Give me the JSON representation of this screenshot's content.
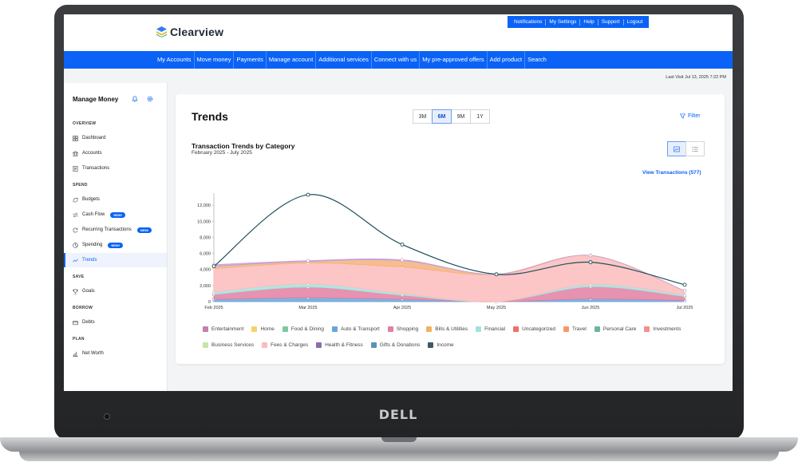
{
  "brand": {
    "name": "Clearview"
  },
  "utility_links": [
    "Notifications",
    "My Settings",
    "Help",
    "Support",
    "Logout"
  ],
  "nav_items": [
    "My Accounts",
    "Move money",
    "Payments",
    "Manage account",
    "Additional services",
    "Connect with us",
    "My pre-approved offers",
    "Add product",
    "Search"
  ],
  "last_visit": "Last Visit Jul 13, 2025 7:22 PM",
  "sidebar": {
    "title": "Manage Money",
    "sections": [
      {
        "label": "OVERVIEW",
        "items": [
          {
            "label": "Dashboard",
            "icon": "grid-icon"
          },
          {
            "label": "Accounts",
            "icon": "bank-icon"
          },
          {
            "label": "Transactions",
            "icon": "receipt-icon"
          }
        ]
      },
      {
        "label": "SPEND",
        "items": [
          {
            "label": "Budgets",
            "icon": "budget-icon"
          },
          {
            "label": "Cash Flow",
            "icon": "cashflow-icon",
            "badge": "NEW!"
          },
          {
            "label": "Recurring Transactions",
            "icon": "recurring-icon",
            "badge": "NEW!"
          },
          {
            "label": "Spending",
            "icon": "spending-icon",
            "badge": "NEW!"
          },
          {
            "label": "Trends",
            "icon": "trend-icon",
            "active": true
          }
        ]
      },
      {
        "label": "SAVE",
        "items": [
          {
            "label": "Goals",
            "icon": "trophy-icon"
          }
        ]
      },
      {
        "label": "BORROW",
        "items": [
          {
            "label": "Debts",
            "icon": "debt-icon"
          }
        ]
      },
      {
        "label": "PLAN",
        "items": [
          {
            "label": "Net Worth",
            "icon": "networth-icon"
          }
        ]
      }
    ]
  },
  "main": {
    "title": "Trends",
    "ranges": [
      "3M",
      "6M",
      "9M",
      "1Y"
    ],
    "active_range": "6M",
    "filter_label": "Filter",
    "view_transactions": "View Transactions (577)"
  },
  "chart_data": {
    "type": "area",
    "title": "Transaction Trends by Category",
    "subtitle": "February 2025 - July 2025",
    "categories": [
      "Feb 2025",
      "Mar 2025",
      "Apr 2025",
      "May 2025",
      "Jun 2025",
      "Jul 2025"
    ],
    "y_ticks": [
      "0",
      "2,000",
      "4,000",
      "6,000",
      "8,000",
      "10,000",
      "12,000"
    ],
    "ylim": [
      0,
      13500
    ],
    "stacked_series": [
      {
        "name": "Gifts & Donations",
        "color": "#6aa5d8",
        "values": [
          300,
          500,
          300,
          0,
          350,
          150
        ]
      },
      {
        "name": "Shopping",
        "color": "#e37fa2",
        "values": [
          600,
          1300,
          500,
          0,
          1500,
          500
        ]
      },
      {
        "name": "Financial",
        "color": "#a5e1dc",
        "values": [
          300,
          400,
          200,
          0,
          300,
          200
        ]
      },
      {
        "name": "Investments",
        "color": "#fbbcbc",
        "values": [
          2900,
          2600,
          3300,
          3400,
          3600,
          500
        ]
      },
      {
        "name": "Travel",
        "color": "#f5b17c",
        "values": [
          300,
          200,
          800,
          0,
          0,
          0
        ]
      },
      {
        "name": "Entertainment",
        "color": "#c4a0d6",
        "values": [
          200,
          100,
          100,
          0,
          0,
          0
        ]
      }
    ],
    "line_series": {
      "name": "Income",
      "color": "#1f4f5c",
      "values": [
        4400,
        13300,
        7100,
        3400,
        4900,
        2100
      ]
    },
    "legend": [
      {
        "name": "Entertainment",
        "color": "#c280ad"
      },
      {
        "name": "Home",
        "color": "#f6d36b"
      },
      {
        "name": "Food & Dining",
        "color": "#7fc7a1"
      },
      {
        "name": "Auto & Transport",
        "color": "#6aa5d8"
      },
      {
        "name": "Shopping",
        "color": "#e37fa2"
      },
      {
        "name": "Bills & Utilities",
        "color": "#f0b360"
      },
      {
        "name": "Financial",
        "color": "#a5e1dc"
      },
      {
        "name": "Uncategorized",
        "color": "#ef6f6f"
      },
      {
        "name": "Travel",
        "color": "#f5986a"
      },
      {
        "name": "Personal Care",
        "color": "#6bb89b"
      },
      {
        "name": "Investments",
        "color": "#f58e8e"
      },
      {
        "name": "Business Services",
        "color": "#c4e6a7"
      },
      {
        "name": "Fees & Charges",
        "color": "#fbbcbc"
      },
      {
        "name": "Health & Fitness",
        "color": "#8a6fa8"
      },
      {
        "name": "Gifts & Donations",
        "color": "#5b93b8"
      },
      {
        "name": "Income",
        "color": "#3b5b64"
      }
    ]
  }
}
